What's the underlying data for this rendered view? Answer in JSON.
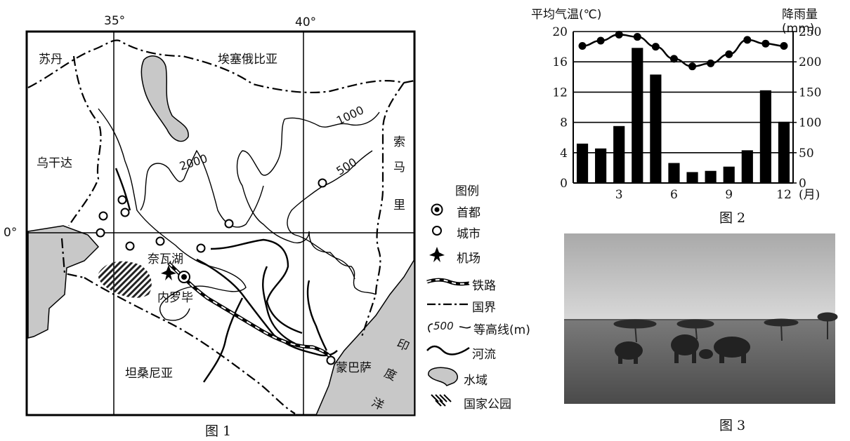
{
  "map": {
    "lon_labels": [
      "35°",
      "40°"
    ],
    "lat_label": "0°",
    "countries": [
      "苏丹",
      "埃塞俄比亚",
      "乌干达",
      "坦桑尼亚"
    ],
    "somalia": [
      "索",
      "马",
      "里"
    ],
    "ocean": [
      "印",
      "度",
      "洋"
    ],
    "contours": [
      "2000",
      "1000",
      "500"
    ],
    "lake": "奈瓦湖",
    "capital": "内罗毕",
    "port": "蒙巴萨",
    "caption": "图 1"
  },
  "legend": {
    "title": "图例",
    "items": [
      {
        "icon": "capital-icon",
        "label": "首都"
      },
      {
        "icon": "city-icon",
        "label": "城市"
      },
      {
        "icon": "airport-icon",
        "label": "机场"
      },
      {
        "icon": "railway-icon",
        "label": "铁路"
      },
      {
        "icon": "border-icon",
        "label": "国界"
      },
      {
        "icon": "contour-icon",
        "label": "等高线(m)",
        "sample": "500"
      },
      {
        "icon": "river-icon",
        "label": "河流"
      },
      {
        "icon": "water-icon",
        "label": "水域"
      },
      {
        "icon": "park-icon",
        "label": "国家公园"
      }
    ]
  },
  "chart_data": {
    "type": "bar+line",
    "title_left": "平均气温(℃)",
    "title_right": "降雨量(mm)",
    "xunit": "(月)",
    "categories": [
      1,
      2,
      3,
      4,
      5,
      6,
      7,
      8,
      9,
      10,
      11,
      12
    ],
    "x_ticks": [
      3,
      6,
      9,
      12
    ],
    "left_ticks": [
      0,
      4,
      8,
      12,
      16,
      20
    ],
    "right_ticks": [
      0,
      50,
      100,
      150,
      200,
      250
    ],
    "ylim_left": [
      0,
      20
    ],
    "ylim_right": [
      0,
      250
    ],
    "series": [
      {
        "name": "平均气温(℃)",
        "type": "line",
        "axis": "left",
        "values": [
          18.1,
          18.8,
          19.6,
          19.3,
          18.0,
          16.4,
          15.4,
          15.8,
          17.0,
          18.9,
          18.4,
          18.1
        ]
      },
      {
        "name": "降雨量(mm)",
        "type": "bar",
        "axis": "right",
        "values": [
          65,
          57,
          94,
          223,
          179,
          33,
          18,
          20,
          27,
          54,
          153,
          101
        ]
      }
    ],
    "caption": "图 2"
  },
  "photo": {
    "caption": "图 3"
  }
}
